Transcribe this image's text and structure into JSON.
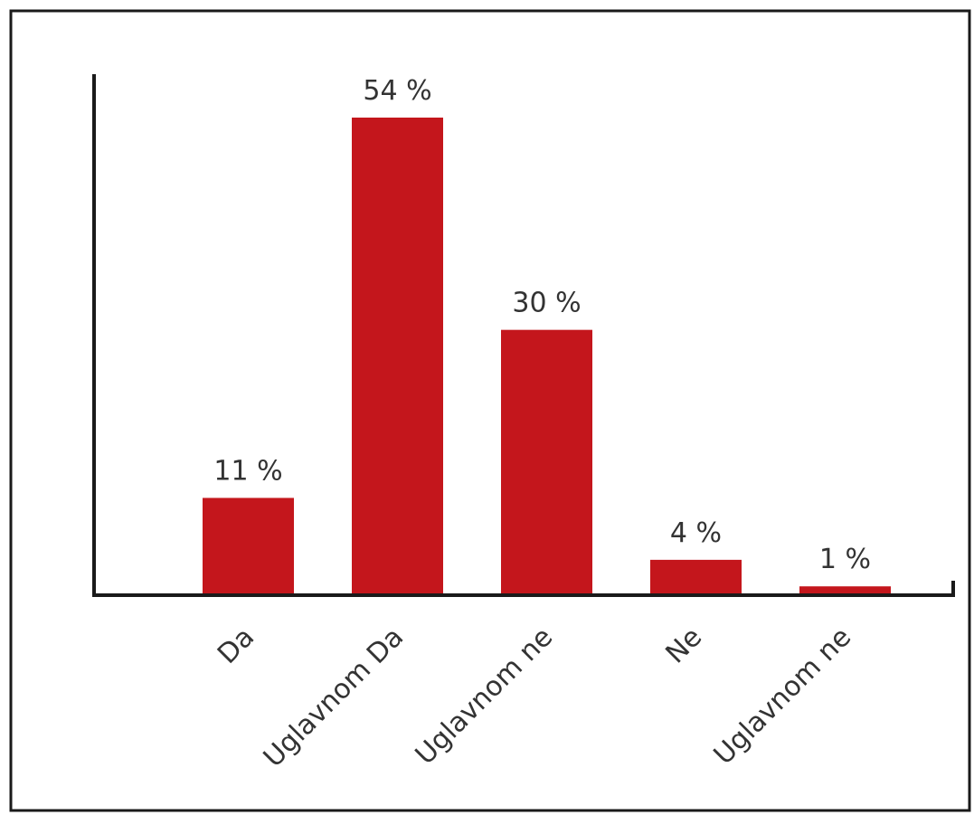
{
  "chart_data": {
    "type": "bar",
    "title": "",
    "xlabel": "",
    "ylabel": "",
    "categories": [
      "Da",
      "Uglavnom Da",
      "Uglavnom ne",
      "Ne",
      "Uglavnom ne"
    ],
    "values": [
      11,
      54,
      30,
      4,
      1
    ],
    "data_labels": [
      "11 %",
      "54 %",
      "30 %",
      "4 %",
      "1 %"
    ],
    "ylim": [
      0,
      64
    ],
    "grid": false,
    "legend": "none",
    "bar_color": "#c4161c",
    "axis_color": "#1a1a1a",
    "frame_color": "#1a1a1a",
    "text_color": "#333333"
  }
}
